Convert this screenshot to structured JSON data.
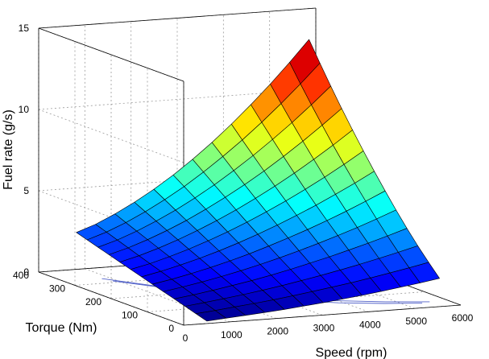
{
  "chart_data": {
    "type": "surface",
    "title": "",
    "xlabel": "Speed (rpm)",
    "ylabel": "Torque (Nm)",
    "zlabel": "Fuel rate (g/s)",
    "xlim": [
      0,
      6000
    ],
    "ylim": [
      0,
      400
    ],
    "zlim": [
      0,
      15
    ],
    "xticks": [
      "0",
      "1000",
      "2000",
      "3000",
      "4000",
      "5000",
      "6000"
    ],
    "yticks": [
      "0",
      "100",
      "200",
      "300",
      "400"
    ],
    "zticks": [
      "0",
      "5",
      "10",
      "15"
    ],
    "grid": true,
    "colormap": "jet",
    "surface": {
      "speed_rpm": [
        500,
        920,
        1340,
        1760,
        2180,
        2600,
        3020,
        3440,
        3860,
        4280,
        4700,
        5120,
        5540
      ],
      "torque_nm": [
        0,
        30,
        60,
        90,
        120,
        150,
        180,
        210,
        240,
        270,
        300,
        330,
        360
      ],
      "fuel_rate_gs": [
        [
          0.15,
          0.24,
          0.33,
          0.42,
          0.52,
          0.64,
          0.76,
          0.9,
          1.04,
          1.2,
          1.37,
          1.55,
          1.74
        ],
        [
          0.36,
          0.47,
          0.6,
          0.73,
          0.87,
          1.03,
          1.2,
          1.38,
          1.57,
          1.78,
          2.0,
          2.23,
          2.48
        ],
        [
          0.57,
          0.71,
          0.86,
          1.03,
          1.21,
          1.41,
          1.63,
          1.86,
          2.11,
          2.37,
          2.65,
          2.94,
          3.25
        ],
        [
          0.78,
          0.94,
          1.13,
          1.34,
          1.56,
          1.81,
          2.08,
          2.37,
          2.67,
          3.0,
          3.34,
          3.7,
          4.08
        ],
        [
          0.98,
          1.18,
          1.4,
          1.65,
          1.92,
          2.22,
          2.54,
          2.89,
          3.26,
          3.65,
          4.06,
          4.5,
          4.96
        ],
        [
          1.19,
          1.41,
          1.67,
          1.96,
          2.28,
          2.63,
          3.02,
          3.43,
          3.86,
          4.33,
          4.82,
          5.34,
          5.89
        ],
        [
          1.4,
          1.65,
          1.95,
          2.28,
          2.65,
          3.06,
          3.5,
          3.98,
          4.49,
          5.03,
          5.61,
          6.21,
          6.85
        ],
        [
          1.61,
          1.88,
          2.22,
          2.6,
          3.03,
          3.49,
          4.0,
          4.55,
          5.13,
          5.76,
          6.42,
          7.12,
          7.86
        ],
        [
          1.82,
          2.12,
          2.5,
          2.93,
          3.41,
          3.94,
          4.51,
          5.13,
          5.8,
          6.51,
          7.27,
          8.06,
          8.9
        ],
        [
          2.03,
          2.36,
          2.78,
          3.26,
          3.79,
          4.39,
          5.04,
          5.73,
          6.48,
          7.29,
          8.14,
          9.04,
          9.98
        ],
        [
          2.24,
          2.6,
          3.06,
          3.59,
          4.18,
          4.84,
          5.56,
          6.35,
          7.19,
          8.09,
          9.04,
          10.05,
          11.11
        ],
        [
          2.45,
          2.84,
          3.34,
          3.92,
          4.58,
          5.3,
          6.1,
          6.97,
          7.9,
          8.9,
          9.97,
          11.09,
          12.28
        ],
        [
          2.66,
          3.08,
          3.63,
          4.26,
          4.97,
          5.76,
          6.64,
          7.59,
          8.63,
          9.74,
          10.92,
          12.17,
          13.49
        ]
      ]
    },
    "floor_lines": [
      {
        "points": [
          [
            820,
            330
          ],
          [
            1500,
            250
          ],
          [
            2300,
            170
          ],
          [
            3100,
            110
          ],
          [
            3900,
            70
          ],
          [
            4700,
            45
          ],
          [
            5400,
            30
          ]
        ]
      },
      {
        "points": [
          [
            900,
            310
          ],
          [
            1800,
            210
          ],
          [
            2800,
            140
          ],
          [
            3800,
            90
          ],
          [
            4800,
            55
          ],
          [
            5600,
            35
          ]
        ]
      }
    ]
  }
}
